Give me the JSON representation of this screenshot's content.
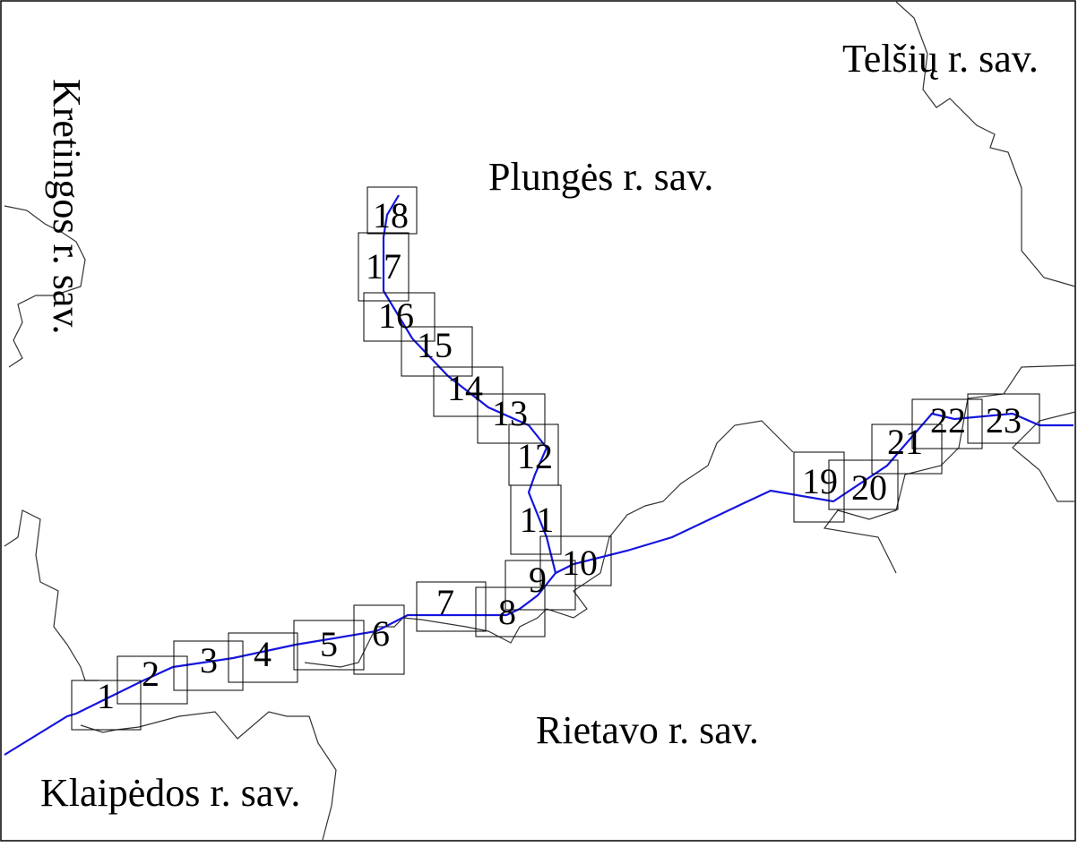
{
  "regions": [
    "Telšių r. sav.",
    "Plungės r. sav.",
    "Kretingos r. sav.",
    "Rietavo r. sav.",
    "Klaipėdos r. sav."
  ],
  "tiles": [
    "1",
    "2",
    "3",
    "4",
    "5",
    "6",
    "7",
    "8",
    "9",
    "10",
    "11",
    "12",
    "13",
    "14",
    "15",
    "16",
    "17",
    "18",
    "19",
    "20",
    "21",
    "22",
    "23"
  ],
  "selected_tile": "11"
}
